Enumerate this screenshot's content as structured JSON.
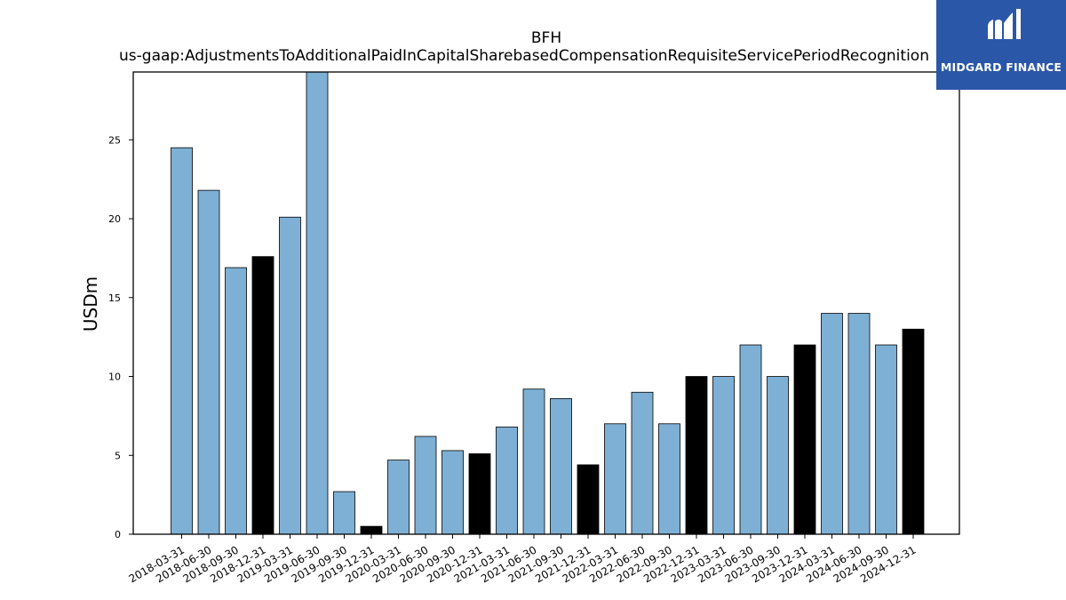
{
  "chart_data": {
    "type": "bar",
    "title": "BFH",
    "subtitle": "us-gaap:AdjustmentsToAdditionalPaidInCapitalSharebasedCompensationRequisiteServicePeriodRecognition",
    "xlabel": "",
    "ylabel": "USDm",
    "ylim": [
      0,
      29.3
    ],
    "yticks": [
      0,
      5,
      10,
      15,
      20,
      25
    ],
    "grid": false,
    "categories": [
      "2018-03-31",
      "2018-06-30",
      "2018-09-30",
      "2018-12-31",
      "2019-03-31",
      "2019-06-30",
      "2019-09-30",
      "2019-12-31",
      "2020-03-31",
      "2020-06-30",
      "2020-09-30",
      "2020-12-31",
      "2021-03-31",
      "2021-06-30",
      "2021-09-30",
      "2021-12-31",
      "2022-03-31",
      "2022-06-30",
      "2022-09-30",
      "2022-12-31",
      "2023-03-31",
      "2023-06-30",
      "2023-09-30",
      "2023-12-31",
      "2024-03-31",
      "2024-06-30",
      "2024-09-30",
      "2024-12-31"
    ],
    "values": [
      24.5,
      21.8,
      16.9,
      17.6,
      20.1,
      29.5,
      2.7,
      0.5,
      4.7,
      6.2,
      5.3,
      5.1,
      6.8,
      9.2,
      8.6,
      4.4,
      7.0,
      9.0,
      7.0,
      10.0,
      10.0,
      12.0,
      10.0,
      12.0,
      14.0,
      14.0,
      12.0,
      13.0
    ],
    "colors": {
      "quarter": "#7eb0d5",
      "year_end": "#000000",
      "edge": "#000000"
    },
    "year_end_categories": [
      "2018-12-31",
      "2019-12-31",
      "2020-12-31",
      "2021-12-31",
      "2022-12-31",
      "2023-12-31",
      "2024-12-31"
    ]
  },
  "logo": {
    "text": "MIDGARD FINANCE",
    "background": "#2b57a8"
  }
}
